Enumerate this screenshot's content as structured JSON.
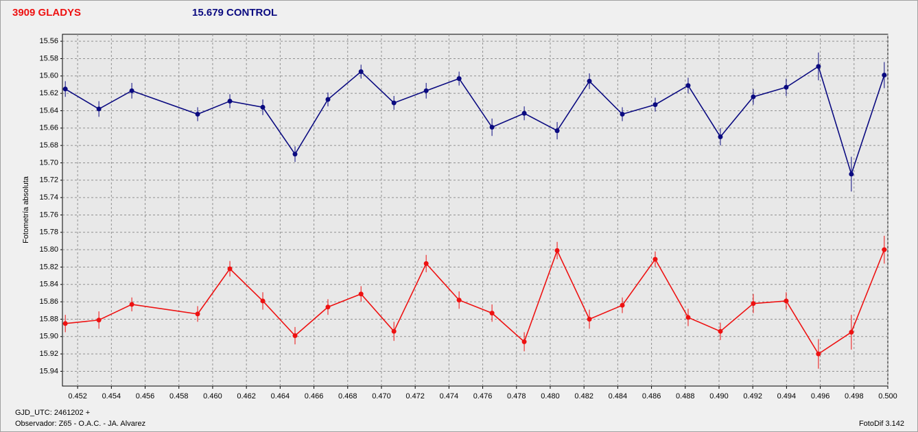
{
  "chart_data": {
    "type": "line",
    "x_label": "GJD_UTC: 2461202 +",
    "y_label": "Fotometría absoluta",
    "observer": "Observador: Z65 - O.A.C. - JA. Alvarez",
    "software": "FotoDif 3.142",
    "x": [
      0.45127,
      0.45326,
      0.45521,
      0.45911,
      0.46102,
      0.46297,
      0.46488,
      0.46683,
      0.46879,
      0.47074,
      0.47265,
      0.4746,
      0.47655,
      0.47846,
      0.48041,
      0.48232,
      0.48427,
      0.48622,
      0.48817,
      0.49008,
      0.49203,
      0.49398,
      0.49589,
      0.49784,
      0.49979
    ],
    "series": [
      {
        "name": "3909 GLADYS",
        "color": "#ee1111",
        "values": [
          15.885,
          15.881,
          15.863,
          15.874,
          15.822,
          15.859,
          15.899,
          15.866,
          15.851,
          15.894,
          15.816,
          15.858,
          15.873,
          15.906,
          15.801,
          15.88,
          15.864,
          15.811,
          15.878,
          15.894,
          15.862,
          15.859,
          15.92,
          15.895,
          15.8
        ],
        "errors": [
          0.01,
          0.01,
          0.008,
          0.009,
          0.009,
          0.01,
          0.01,
          0.009,
          0.009,
          0.011,
          0.01,
          0.01,
          0.01,
          0.011,
          0.01,
          0.011,
          0.009,
          0.009,
          0.01,
          0.01,
          0.011,
          0.01,
          0.017,
          0.02,
          0.016
        ]
      },
      {
        "name": "15.679 CONTROL",
        "color": "#0a0a80",
        "values": [
          15.615,
          15.638,
          15.617,
          15.644,
          15.629,
          15.636,
          15.69,
          15.627,
          15.595,
          15.631,
          15.617,
          15.603,
          15.659,
          15.643,
          15.663,
          15.606,
          15.644,
          15.633,
          15.611,
          15.67,
          15.624,
          15.613,
          15.589,
          15.713,
          15.599
        ],
        "errors": [
          0.009,
          0.009,
          0.009,
          0.008,
          0.008,
          0.009,
          0.009,
          0.008,
          0.008,
          0.008,
          0.009,
          0.008,
          0.01,
          0.008,
          0.01,
          0.009,
          0.008,
          0.008,
          0.009,
          0.01,
          0.009,
          0.01,
          0.016,
          0.02,
          0.015
        ]
      }
    ],
    "xlim": [
      0.4511,
      0.5
    ],
    "xticks": [
      0.452,
      0.454,
      0.456,
      0.458,
      {
        "value": 0.46,
        "label": "0.460"
      },
      0.462,
      0.464,
      0.466,
      0.468,
      {
        "value": 0.47,
        "label": "0.470"
      },
      0.472,
      0.474,
      0.476,
      0.478,
      {
        "value": 0.48,
        "label": "0.480"
      },
      0.482,
      0.484,
      0.486,
      0.488,
      {
        "value": 0.49,
        "label": "0.490"
      },
      0.492,
      0.494,
      0.496,
      0.498,
      {
        "value": 0.5,
        "label": "0.500"
      }
    ],
    "ylim": [
      15.552,
      15.957
    ],
    "y_inverted": true,
    "yticks": [
      15.56,
      15.58,
      {
        "value": 15.6,
        "label": "15.60"
      },
      15.62,
      15.64,
      15.66,
      15.68,
      {
        "value": 15.7,
        "label": "15.70"
      },
      15.72,
      15.74,
      15.76,
      15.78,
      {
        "value": 15.8,
        "label": "15.80"
      },
      15.82,
      15.84,
      15.86,
      15.88,
      {
        "value": 15.9,
        "label": "15.90"
      },
      15.92,
      15.94
    ],
    "grid": true
  }
}
